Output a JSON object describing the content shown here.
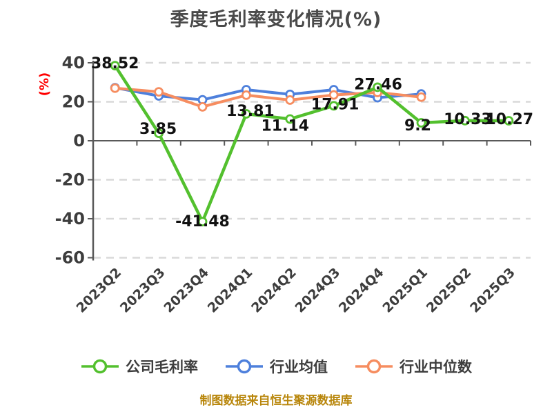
{
  "chart_data": {
    "type": "line",
    "title": "季度毛利率变化情况(%)",
    "y_axis_label": "(%)",
    "footnote": "制图数据来自恒生聚源数据库",
    "ylim": [
      -60,
      40
    ],
    "yticks": [
      40,
      20,
      0,
      -20,
      -40,
      -60
    ],
    "grid": "horizontal-dashed",
    "legend_position": "bottom",
    "categories": [
      "2023Q2",
      "2023Q3",
      "2023Q4",
      "2024Q1",
      "2024Q2",
      "2024Q3",
      "2024Q4",
      "2025Q1",
      "2025Q2",
      "2025Q3"
    ],
    "series": [
      {
        "name": "公司毛利率",
        "color": "#53c02e",
        "values": [
          38.52,
          3.85,
          -41.48,
          13.81,
          11.14,
          17.91,
          27.46,
          9.2,
          10.33,
          10.27
        ],
        "labels": [
          "38.52",
          "3.85",
          "-41.48",
          "13.81",
          "11.14",
          "17.91",
          "27.46",
          "9.2",
          "10.33",
          "10.27"
        ]
      },
      {
        "name": "行业均值",
        "color": "#4e80dc",
        "values": [
          27.2,
          23.0,
          21.0,
          26.2,
          23.8,
          26.2,
          22.1,
          24.0,
          null,
          null
        ],
        "labels": []
      },
      {
        "name": "行业中位数",
        "color": "#f68d60",
        "values": [
          27.0,
          25.1,
          17.4,
          23.4,
          20.9,
          23.5,
          24.8,
          22.4,
          null,
          null
        ],
        "labels": []
      }
    ]
  },
  "colors": {
    "title": "#4a4a4a",
    "axis_text": "#3d3d3d",
    "value_labels": "#111111",
    "y_axis_label": "#ff0000",
    "footnote": "#b8860b",
    "grid_line": "#d9d9d9",
    "axis_line": "#595959",
    "background": "#ffffff"
  }
}
